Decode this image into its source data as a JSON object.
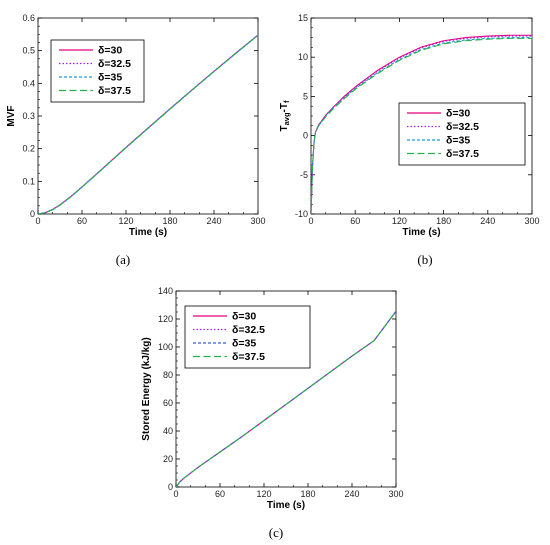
{
  "chart_data": [
    {
      "type": "line",
      "panel": "a",
      "caption": "(a)",
      "title": "",
      "xlabel": "Time (s)",
      "ylabel": "MVF",
      "ylabel_sub": "",
      "xlim": [
        0,
        300
      ],
      "ylim": [
        0,
        0.6
      ],
      "xticks": [
        0,
        60,
        120,
        180,
        240,
        300
      ],
      "yticks": [
        0,
        0.1,
        0.2,
        0.3,
        0.4,
        0.5,
        0.6
      ],
      "ytick_labels": [
        "0",
        "0.1",
        "0.2",
        "0.3",
        "0.4",
        "0.5",
        "0.6"
      ],
      "grid": false,
      "legend_position": "top-left",
      "series": [
        {
          "name": "δ=30",
          "color": "#e6007e",
          "dash": "solid",
          "x": [
            0,
            10,
            20,
            30,
            45,
            60,
            90,
            120,
            150,
            180,
            210,
            240,
            270,
            300
          ],
          "y": [
            0,
            0.004,
            0.014,
            0.028,
            0.054,
            0.083,
            0.143,
            0.204,
            0.263,
            0.322,
            0.38,
            0.437,
            0.493,
            0.548
          ]
        },
        {
          "name": "δ=32.5",
          "color": "#a020f0",
          "dash": "dot",
          "x": [
            0,
            10,
            20,
            30,
            45,
            60,
            90,
            120,
            150,
            180,
            210,
            240,
            270,
            300
          ],
          "y": [
            0,
            0.004,
            0.014,
            0.028,
            0.054,
            0.083,
            0.143,
            0.204,
            0.263,
            0.322,
            0.38,
            0.437,
            0.493,
            0.548
          ]
        },
        {
          "name": "δ=35",
          "color": "#1f9bd7",
          "dash": "dash-short",
          "x": [
            0,
            10,
            20,
            30,
            45,
            60,
            90,
            120,
            150,
            180,
            210,
            240,
            270,
            300
          ],
          "y": [
            0,
            0.004,
            0.013,
            0.027,
            0.053,
            0.082,
            0.142,
            0.203,
            0.262,
            0.321,
            0.379,
            0.436,
            0.492,
            0.547
          ]
        },
        {
          "name": "δ=37.5",
          "color": "#22b24c",
          "dash": "dash-long",
          "x": [
            0,
            10,
            20,
            30,
            45,
            60,
            90,
            120,
            150,
            180,
            210,
            240,
            270,
            300
          ],
          "y": [
            0,
            0.004,
            0.013,
            0.027,
            0.053,
            0.082,
            0.142,
            0.203,
            0.262,
            0.321,
            0.379,
            0.436,
            0.492,
            0.547
          ]
        }
      ]
    },
    {
      "type": "line",
      "panel": "b",
      "caption": "(b)",
      "title": "",
      "xlabel": "Time (s)",
      "ylabel": "T",
      "ylabel_sub": "avg",
      "ylabel_suffix": "-T",
      "ylabel_sub2": "f",
      "xlim": [
        0,
        300
      ],
      "ylim": [
        -10,
        15
      ],
      "xticks": [
        0,
        60,
        120,
        180,
        240,
        300
      ],
      "yticks": [
        -10,
        -5,
        0,
        5,
        10,
        15
      ],
      "ytick_labels": [
        "-10",
        "-5",
        "0",
        "5",
        "10",
        "15"
      ],
      "grid": false,
      "legend_position": "center-right",
      "series": [
        {
          "name": "δ=30",
          "color": "#e6007e",
          "dash": "solid",
          "x": [
            0,
            1,
            2,
            4,
            6,
            10,
            20,
            30,
            45,
            60,
            90,
            120,
            150,
            180,
            210,
            240,
            270,
            300
          ],
          "y": [
            -10,
            -7,
            -4,
            -1,
            0.4,
            1.3,
            2.6,
            3.6,
            5.0,
            6.2,
            8.3,
            10.0,
            11.3,
            12.1,
            12.5,
            12.7,
            12.8,
            12.8
          ]
        },
        {
          "name": "δ=32.5",
          "color": "#a020f0",
          "dash": "dot",
          "x": [
            0,
            1,
            2,
            4,
            6,
            10,
            20,
            30,
            45,
            60,
            90,
            120,
            150,
            180,
            210,
            240,
            270,
            300
          ],
          "y": [
            -10,
            -7,
            -4,
            -1,
            0.4,
            1.3,
            2.6,
            3.6,
            4.9,
            6.1,
            8.2,
            9.9,
            11.2,
            12.0,
            12.4,
            12.6,
            12.7,
            12.7
          ]
        },
        {
          "name": "δ=35",
          "color": "#1f9bd7",
          "dash": "dash-short",
          "x": [
            0,
            1,
            2,
            4,
            6,
            10,
            20,
            30,
            45,
            60,
            90,
            120,
            150,
            180,
            210,
            240,
            270,
            300
          ],
          "y": [
            -10,
            -7,
            -4,
            -1,
            0.4,
            1.2,
            2.5,
            3.5,
            4.8,
            6.0,
            8.0,
            9.7,
            11.0,
            11.8,
            12.2,
            12.4,
            12.5,
            12.5
          ]
        },
        {
          "name": "δ=37.5",
          "color": "#22b24c",
          "dash": "dash-long",
          "x": [
            0,
            1,
            2,
            4,
            6,
            10,
            20,
            30,
            45,
            60,
            90,
            120,
            150,
            180,
            210,
            240,
            270,
            300
          ],
          "y": [
            -10,
            -7,
            -4,
            -1,
            0.4,
            1.2,
            2.4,
            3.4,
            4.7,
            5.9,
            7.9,
            9.6,
            10.9,
            11.7,
            12.1,
            12.3,
            12.4,
            12.4
          ]
        }
      ]
    },
    {
      "type": "line",
      "panel": "c",
      "caption": "(c)",
      "title": "",
      "xlabel": "Time (s)",
      "ylabel": "Stored Energy (kJ/kg)",
      "ylabel_sub": "",
      "xlim": [
        0,
        300
      ],
      "ylim": [
        0,
        140
      ],
      "xticks": [
        0,
        60,
        120,
        180,
        240,
        300
      ],
      "yticks": [
        0,
        20,
        40,
        60,
        80,
        100,
        120,
        140
      ],
      "ytick_labels": [
        "0",
        "20",
        "40",
        "60",
        "80",
        "100",
        "120",
        "140"
      ],
      "grid": false,
      "legend_position": "top-left",
      "series": [
        {
          "name": "δ=30",
          "color": "#e6007e",
          "dash": "solid",
          "x": [
            0,
            5,
            10,
            20,
            30,
            45,
            60,
            90,
            120,
            150,
            180,
            210,
            240,
            270,
            300
          ],
          "y": [
            0,
            3.5,
            6,
            10,
            14,
            19.5,
            25,
            36,
            47.5,
            59,
            70.5,
            82,
            93.5,
            104.5,
            125.5
          ]
        },
        {
          "name": "δ=32.5",
          "color": "#a020f0",
          "dash": "dot",
          "x": [
            0,
            5,
            10,
            20,
            30,
            45,
            60,
            90,
            120,
            150,
            180,
            210,
            240,
            270,
            300
          ],
          "y": [
            0,
            3.5,
            6,
            10,
            14,
            19.5,
            25,
            36,
            47.5,
            59,
            70.5,
            82,
            93.5,
            104.5,
            125.5
          ]
        },
        {
          "name": "δ=35",
          "color": "#3b5bd6",
          "dash": "dash-short",
          "x": [
            0,
            5,
            10,
            20,
            30,
            45,
            60,
            90,
            120,
            150,
            180,
            210,
            240,
            270,
            300
          ],
          "y": [
            0,
            3.5,
            6,
            10,
            14,
            19.5,
            25,
            36,
            47.5,
            59,
            70.5,
            82,
            93.5,
            104.5,
            125.5
          ]
        },
        {
          "name": "δ=37.5",
          "color": "#22b24c",
          "dash": "dash-long",
          "x": [
            0,
            5,
            10,
            20,
            30,
            45,
            60,
            90,
            120,
            150,
            180,
            210,
            240,
            270,
            300
          ],
          "y": [
            0,
            3.5,
            6,
            10,
            14,
            19.5,
            25,
            36,
            47.5,
            59,
            70.5,
            82,
            93.5,
            104.5,
            125.5
          ]
        }
      ]
    }
  ]
}
